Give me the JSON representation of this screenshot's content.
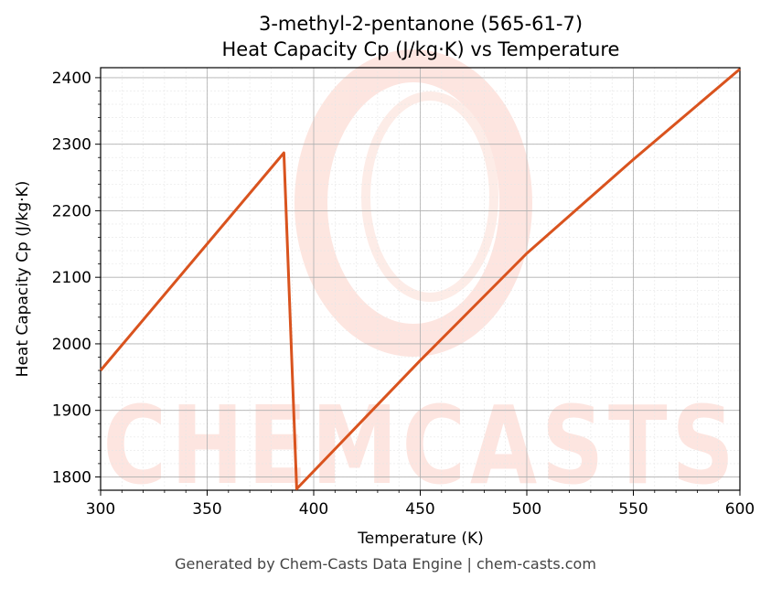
{
  "chart_data": {
    "type": "line",
    "title": "3-methyl-2-pentanone (565-61-7)",
    "subtitle": "Heat Capacity Cp (J/kg·K) vs Temperature",
    "xlabel": "Temperature (K)",
    "ylabel": "Heat Capacity Cp (J/kg·K)",
    "xlim": [
      300,
      600
    ],
    "ylim": [
      1780,
      2415
    ],
    "xticks": [
      300,
      350,
      400,
      450,
      500,
      550,
      600
    ],
    "yticks": [
      1800,
      1900,
      2000,
      2100,
      2200,
      2300,
      2400
    ],
    "grid": true,
    "series": [
      {
        "color": "#d9531e",
        "x": [
          300,
          386,
          392,
          450,
          500,
          550,
          600
        ],
        "y": [
          1960,
          2287,
          1782,
          1975,
          2136,
          2277,
          2413
        ]
      }
    ],
    "watermark": "CHEMCASTS"
  },
  "footer": "Generated by Chem-Casts Data Engine | chem-casts.com"
}
